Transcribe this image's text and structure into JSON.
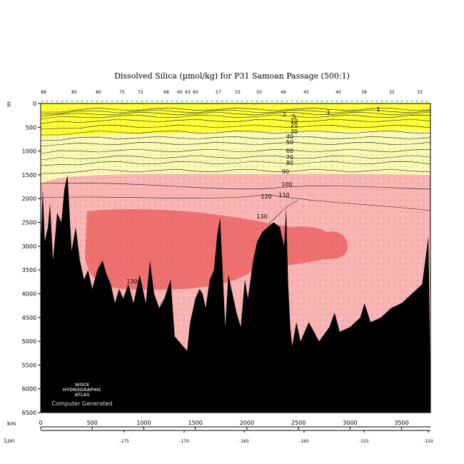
{
  "chart_data": {
    "type": "heatmap",
    "title": "Dissolved Silica (µmol/kg) for P31 Samoan Passage (500:1)",
    "y_axis_unit": "m",
    "x_axis_unit": "km",
    "x2_axis_unit": "Lon",
    "y_ticks": [
      "0",
      "500",
      "1000",
      "1500",
      "2000",
      "2500",
      "3000",
      "3500",
      "4000",
      "4500",
      "5000",
      "5500",
      "6000",
      "6500"
    ],
    "x_ticks": [
      "0",
      "500",
      "1000",
      "1500",
      "2000",
      "2500",
      "3000",
      "3500"
    ],
    "lon_ticks": [
      "-175",
      "-170",
      "-165",
      "-160",
      "-155",
      "-150"
    ],
    "ylim": [
      6500,
      0
    ],
    "xlim": [
      0,
      3780
    ],
    "station_labels": [
      "88",
      "85",
      "80",
      "75",
      "72",
      "68",
      "65",
      "63",
      "60",
      "57",
      "53",
      "50",
      "48",
      "45",
      "40",
      "38",
      "35",
      "33"
    ],
    "contour_levels": [
      1,
      2,
      5,
      10,
      20,
      30,
      40,
      50,
      60,
      70,
      80,
      90,
      100,
      110,
      120,
      130
    ],
    "contour_labels_shown": [
      "1",
      "1",
      "2",
      "5",
      "10",
      "20",
      "30",
      "40",
      "50",
      "60",
      "70",
      "80",
      "90",
      "100",
      "110",
      "120",
      "130",
      "130"
    ],
    "color_bands": [
      {
        "range": "0-50",
        "color": "#ffff33"
      },
      {
        "range": "50-100",
        "color": "#fafab4"
      },
      {
        "range": "100-130",
        "color": "#fab4b4"
      },
      {
        "range": ">130",
        "color": "#f07070"
      }
    ],
    "bathymetry_color": "#000000",
    "watermark": [
      "WOCE",
      "HYDROGRAPHIC",
      "ATLAS"
    ],
    "footer_text": "Computer Generated"
  }
}
